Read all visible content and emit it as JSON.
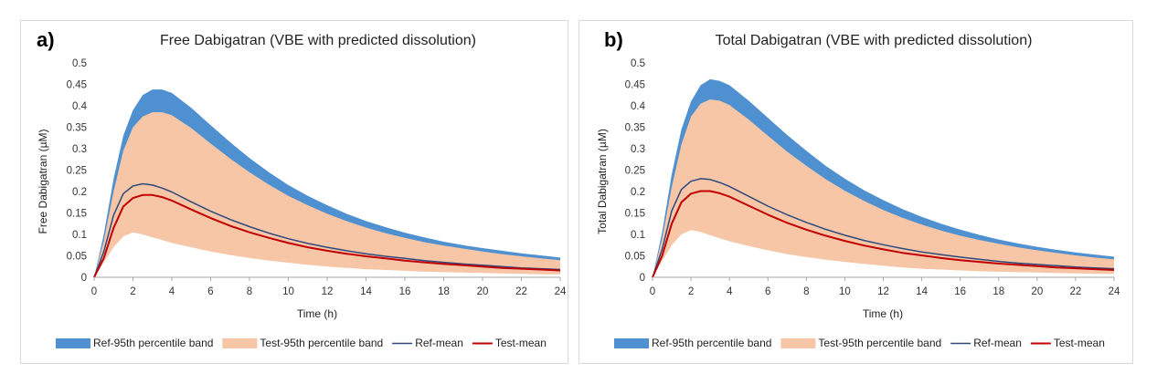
{
  "chart_data": [
    {
      "type": "area",
      "panel_label": "a)",
      "title": "Free Dabigatran (VBE with predicted dissolution)",
      "xlabel": "Time (h)",
      "ylabel": "Free Dabigatran (µM)",
      "xlim": [
        0,
        24
      ],
      "ylim": [
        0,
        0.5
      ],
      "x_ticks": [
        "0",
        "2",
        "4",
        "6",
        "8",
        "10",
        "12",
        "14",
        "16",
        "18",
        "20",
        "22",
        "24"
      ],
      "y_ticks": [
        "0",
        "0.05",
        "0.1",
        "0.15",
        "0.2",
        "0.25",
        "0.3",
        "0.35",
        "0.4",
        "0.45",
        "0.5"
      ],
      "grid": false,
      "legend_position": "bottom",
      "x": [
        0,
        0.5,
        1,
        1.5,
        2,
        2.5,
        3,
        3.5,
        4,
        5,
        6,
        7,
        8,
        9,
        10,
        11,
        12,
        13,
        14,
        15,
        16,
        17,
        18,
        19,
        20,
        21,
        22,
        23,
        24
      ],
      "series": [
        {
          "name": "Ref-95th percentile band",
          "kind": "band",
          "color": "#4e90d0",
          "lower": [
            0,
            0.04,
            0.08,
            0.105,
            0.115,
            0.112,
            0.105,
            0.098,
            0.09,
            0.078,
            0.068,
            0.058,
            0.05,
            0.043,
            0.037,
            0.032,
            0.028,
            0.024,
            0.021,
            0.019,
            0.017,
            0.015,
            0.013,
            0.012,
            0.011,
            0.01,
            0.009,
            0.008,
            0.008
          ],
          "upper": [
            0,
            0.1,
            0.23,
            0.33,
            0.39,
            0.425,
            0.438,
            0.438,
            0.43,
            0.395,
            0.355,
            0.315,
            0.278,
            0.245,
            0.215,
            0.19,
            0.168,
            0.148,
            0.131,
            0.117,
            0.104,
            0.093,
            0.083,
            0.075,
            0.068,
            0.062,
            0.056,
            0.051,
            0.046
          ]
        },
        {
          "name": "Test-95th percentile band",
          "kind": "band",
          "color": "#f6c6a6",
          "lower": [
            0,
            0.035,
            0.07,
            0.095,
            0.105,
            0.1,
            0.093,
            0.087,
            0.08,
            0.07,
            0.06,
            0.052,
            0.045,
            0.039,
            0.034,
            0.029,
            0.025,
            0.022,
            0.019,
            0.017,
            0.015,
            0.013,
            0.012,
            0.011,
            0.01,
            0.009,
            0.008,
            0.007,
            0.007
          ],
          "upper": [
            0,
            0.085,
            0.2,
            0.295,
            0.35,
            0.375,
            0.385,
            0.385,
            0.378,
            0.348,
            0.312,
            0.277,
            0.245,
            0.216,
            0.19,
            0.168,
            0.148,
            0.131,
            0.116,
            0.103,
            0.092,
            0.082,
            0.074,
            0.067,
            0.06,
            0.054,
            0.049,
            0.044,
            0.04
          ]
        },
        {
          "name": "Ref-mean",
          "kind": "line",
          "color": "#2e4a7d",
          "values": [
            0,
            0.06,
            0.145,
            0.195,
            0.213,
            0.218,
            0.215,
            0.208,
            0.199,
            0.176,
            0.154,
            0.135,
            0.118,
            0.103,
            0.09,
            0.079,
            0.07,
            0.062,
            0.055,
            0.049,
            0.044,
            0.039,
            0.035,
            0.031,
            0.028,
            0.025,
            0.022,
            0.02,
            0.018
          ]
        },
        {
          "name": "Test-mean",
          "kind": "line",
          "color": "#c00000",
          "values": [
            0,
            0.045,
            0.115,
            0.165,
            0.185,
            0.192,
            0.192,
            0.187,
            0.179,
            0.158,
            0.138,
            0.12,
            0.105,
            0.092,
            0.08,
            0.07,
            0.062,
            0.055,
            0.049,
            0.044,
            0.039,
            0.035,
            0.031,
            0.028,
            0.025,
            0.022,
            0.02,
            0.018,
            0.016
          ]
        }
      ]
    },
    {
      "type": "area",
      "panel_label": "b)",
      "title": "Total Dabigatran (VBE with predicted dissolution)",
      "xlabel": "Time (h)",
      "ylabel": "Total Dabigatran (µM)",
      "xlim": [
        0,
        24
      ],
      "ylim": [
        0,
        0.5
      ],
      "x_ticks": [
        "0",
        "2",
        "4",
        "6",
        "8",
        "10",
        "12",
        "14",
        "16",
        "18",
        "20",
        "22",
        "24"
      ],
      "y_ticks": [
        "0",
        "0.05",
        "0.1",
        "0.15",
        "0.2",
        "0.25",
        "0.3",
        "0.35",
        "0.4",
        "0.45",
        "0.5"
      ],
      "grid": false,
      "legend_position": "bottom",
      "x": [
        0,
        0.5,
        1,
        1.5,
        2,
        2.5,
        3,
        3.5,
        4,
        5,
        6,
        7,
        8,
        9,
        10,
        11,
        12,
        13,
        14,
        15,
        16,
        17,
        18,
        19,
        20,
        21,
        22,
        23,
        24
      ],
      "series": [
        {
          "name": "Ref-95th percentile band",
          "kind": "band",
          "color": "#4e90d0",
          "lower": [
            0,
            0.045,
            0.085,
            0.108,
            0.118,
            0.115,
            0.108,
            0.1,
            0.092,
            0.08,
            0.07,
            0.06,
            0.052,
            0.045,
            0.039,
            0.034,
            0.03,
            0.026,
            0.023,
            0.02,
            0.018,
            0.016,
            0.014,
            0.013,
            0.012,
            0.011,
            0.01,
            0.009,
            0.009
          ],
          "upper": [
            0,
            0.105,
            0.24,
            0.345,
            0.41,
            0.448,
            0.462,
            0.458,
            0.448,
            0.412,
            0.372,
            0.332,
            0.295,
            0.26,
            0.23,
            0.203,
            0.18,
            0.159,
            0.141,
            0.125,
            0.111,
            0.099,
            0.088,
            0.079,
            0.071,
            0.064,
            0.058,
            0.053,
            0.048
          ]
        },
        {
          "name": "Test-95th percentile band",
          "kind": "band",
          "color": "#f6c6a6",
          "lower": [
            0,
            0.038,
            0.075,
            0.1,
            0.11,
            0.106,
            0.098,
            0.091,
            0.084,
            0.073,
            0.063,
            0.054,
            0.047,
            0.041,
            0.036,
            0.031,
            0.027,
            0.023,
            0.02,
            0.018,
            0.016,
            0.014,
            0.013,
            0.012,
            0.011,
            0.01,
            0.009,
            0.008,
            0.008
          ],
          "upper": [
            0,
            0.09,
            0.21,
            0.31,
            0.375,
            0.405,
            0.415,
            0.412,
            0.402,
            0.368,
            0.33,
            0.293,
            0.26,
            0.229,
            0.202,
            0.178,
            0.157,
            0.139,
            0.123,
            0.109,
            0.097,
            0.087,
            0.078,
            0.07,
            0.063,
            0.057,
            0.051,
            0.046,
            0.042
          ]
        },
        {
          "name": "Ref-mean",
          "kind": "line",
          "color": "#2e4a7d",
          "values": [
            0,
            0.065,
            0.155,
            0.205,
            0.224,
            0.23,
            0.228,
            0.221,
            0.212,
            0.189,
            0.166,
            0.146,
            0.128,
            0.112,
            0.098,
            0.086,
            0.076,
            0.067,
            0.059,
            0.053,
            0.047,
            0.042,
            0.037,
            0.033,
            0.03,
            0.027,
            0.024,
            0.022,
            0.02
          ]
        },
        {
          "name": "Test-mean",
          "kind": "line",
          "color": "#c00000",
          "values": [
            0,
            0.05,
            0.125,
            0.175,
            0.195,
            0.201,
            0.201,
            0.196,
            0.188,
            0.167,
            0.146,
            0.127,
            0.111,
            0.097,
            0.085,
            0.074,
            0.065,
            0.057,
            0.051,
            0.045,
            0.04,
            0.036,
            0.032,
            0.029,
            0.026,
            0.023,
            0.021,
            0.019,
            0.017
          ]
        }
      ]
    }
  ]
}
